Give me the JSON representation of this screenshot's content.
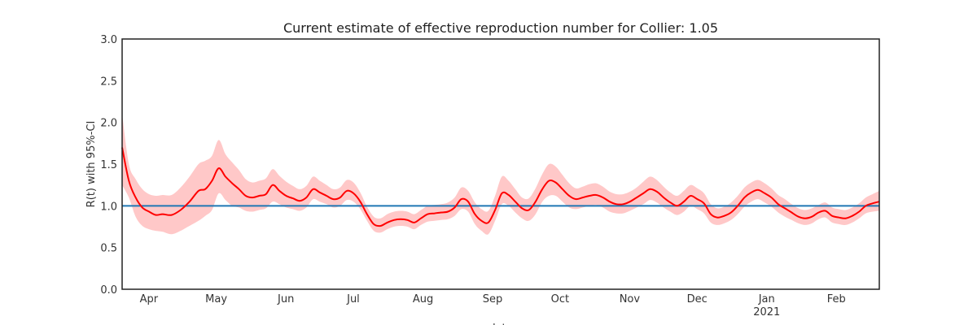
{
  "chart_data": {
    "type": "line",
    "title": "Current estimate of effective reproduction number for Collier: 1.05",
    "ylabel": "R(t) with 95%-CI",
    "xlabel": "date",
    "ylim": [
      0,
      3.0
    ],
    "yticks": [
      "0.0",
      "0.5",
      "1.0",
      "1.5",
      "2.0",
      "2.5",
      "3.0"
    ],
    "xlim": [
      "2020-03-23",
      "2021-02-23"
    ],
    "xticks": [
      {
        "date": "2020-04-01",
        "label": "Apr",
        "sublabel": ""
      },
      {
        "date": "2020-05-01",
        "label": "May",
        "sublabel": ""
      },
      {
        "date": "2020-06-01",
        "label": "Jun",
        "sublabel": ""
      },
      {
        "date": "2020-07-01",
        "label": "Jul",
        "sublabel": ""
      },
      {
        "date": "2020-08-01",
        "label": "Aug",
        "sublabel": ""
      },
      {
        "date": "2020-09-01",
        "label": "Sep",
        "sublabel": ""
      },
      {
        "date": "2020-10-01",
        "label": "Oct",
        "sublabel": ""
      },
      {
        "date": "2020-11-01",
        "label": "Nov",
        "sublabel": ""
      },
      {
        "date": "2020-12-01",
        "label": "Dec",
        "sublabel": ""
      },
      {
        "date": "2021-01-01",
        "label": "Jan",
        "sublabel": "2021"
      },
      {
        "date": "2021-02-01",
        "label": "Feb",
        "sublabel": ""
      }
    ],
    "reference_line": 1.0,
    "grid": false,
    "colors": {
      "line": "#ff0000",
      "band": "#ffc8c8",
      "reference": "#1f77b4",
      "frame": "#222222"
    },
    "series": [
      {
        "x": [
          "2020-03-23",
          "2020-03-26",
          "2020-03-29",
          "2020-04-01",
          "2020-04-04",
          "2020-04-07",
          "2020-04-10",
          "2020-04-14",
          "2020-04-18",
          "2020-04-22",
          "2020-04-26",
          "2020-04-29",
          "2020-05-02",
          "2020-05-05",
          "2020-05-08",
          "2020-05-11",
          "2020-05-14",
          "2020-05-17",
          "2020-05-20",
          "2020-05-23",
          "2020-05-26",
          "2020-05-29",
          "2020-06-01",
          "2020-06-04",
          "2020-06-07",
          "2020-06-10",
          "2020-06-13",
          "2020-06-16",
          "2020-06-19",
          "2020-06-22",
          "2020-06-25",
          "2020-06-28",
          "2020-07-01",
          "2020-07-04",
          "2020-07-07",
          "2020-07-10",
          "2020-07-13",
          "2020-07-16",
          "2020-07-19",
          "2020-07-22",
          "2020-07-25",
          "2020-07-28",
          "2020-07-31",
          "2020-08-03",
          "2020-08-06",
          "2020-08-09",
          "2020-08-12",
          "2020-08-15",
          "2020-08-18",
          "2020-08-21",
          "2020-08-24",
          "2020-08-27",
          "2020-08-30",
          "2020-09-02",
          "2020-09-05",
          "2020-09-08",
          "2020-09-11",
          "2020-09-14",
          "2020-09-17",
          "2020-09-20",
          "2020-09-23",
          "2020-09-26",
          "2020-09-29",
          "2020-10-02",
          "2020-10-05",
          "2020-10-08",
          "2020-10-11",
          "2020-10-14",
          "2020-10-17",
          "2020-10-20",
          "2020-10-23",
          "2020-10-26",
          "2020-10-29",
          "2020-11-01",
          "2020-11-04",
          "2020-11-07",
          "2020-11-10",
          "2020-11-13",
          "2020-11-16",
          "2020-11-19",
          "2020-11-22",
          "2020-11-25",
          "2020-11-28",
          "2020-12-01",
          "2020-12-04",
          "2020-12-07",
          "2020-12-10",
          "2020-12-13",
          "2020-12-16",
          "2020-12-19",
          "2020-12-22",
          "2020-12-25",
          "2020-12-28",
          "2020-12-31",
          "2021-01-03",
          "2021-01-06",
          "2021-01-09",
          "2021-01-12",
          "2021-01-15",
          "2021-01-18",
          "2021-01-21",
          "2021-01-24",
          "2021-01-27",
          "2021-01-30",
          "2021-02-02",
          "2021-02-05",
          "2021-02-08",
          "2021-02-11",
          "2021-02-14",
          "2021-02-17",
          "2021-02-20",
          "2021-02-23"
        ],
        "values": [
          1.7,
          1.3,
          1.1,
          0.98,
          0.93,
          0.89,
          0.9,
          0.89,
          0.95,
          1.05,
          1.18,
          1.2,
          1.3,
          1.45,
          1.35,
          1.27,
          1.2,
          1.12,
          1.1,
          1.12,
          1.14,
          1.25,
          1.18,
          1.12,
          1.09,
          1.06,
          1.1,
          1.2,
          1.16,
          1.12,
          1.08,
          1.1,
          1.18,
          1.15,
          1.05,
          0.9,
          0.78,
          0.76,
          0.8,
          0.83,
          0.84,
          0.83,
          0.8,
          0.85,
          0.9,
          0.91,
          0.92,
          0.93,
          0.98,
          1.08,
          1.05,
          0.9,
          0.82,
          0.8,
          0.95,
          1.15,
          1.13,
          1.05,
          0.97,
          0.95,
          1.05,
          1.2,
          1.3,
          1.28,
          1.2,
          1.12,
          1.08,
          1.1,
          1.12,
          1.13,
          1.1,
          1.05,
          1.02,
          1.02,
          1.05,
          1.1,
          1.15,
          1.2,
          1.17,
          1.1,
          1.04,
          1.0,
          1.05,
          1.12,
          1.08,
          1.03,
          0.9,
          0.86,
          0.88,
          0.92,
          1.0,
          1.1,
          1.16,
          1.19,
          1.15,
          1.1,
          1.02,
          0.97,
          0.92,
          0.87,
          0.85,
          0.87,
          0.92,
          0.94,
          0.88,
          0.86,
          0.85,
          0.88,
          0.93,
          1.0,
          1.03,
          1.05
        ],
        "lower": [
          1.25,
          1.1,
          0.87,
          0.76,
          0.72,
          0.7,
          0.69,
          0.66,
          0.7,
          0.76,
          0.82,
          0.88,
          0.95,
          1.15,
          1.07,
          1.0,
          0.98,
          0.94,
          0.93,
          0.95,
          0.97,
          1.05,
          1.02,
          0.98,
          0.96,
          0.94,
          0.98,
          1.08,
          1.05,
          1.02,
          0.98,
          1.0,
          1.07,
          1.05,
          0.96,
          0.82,
          0.7,
          0.68,
          0.72,
          0.75,
          0.76,
          0.75,
          0.72,
          0.77,
          0.81,
          0.82,
          0.83,
          0.84,
          0.88,
          0.96,
          0.93,
          0.78,
          0.7,
          0.66,
          0.82,
          1.02,
          1.0,
          0.92,
          0.85,
          0.82,
          0.9,
          1.05,
          1.12,
          1.12,
          1.05,
          0.98,
          0.96,
          0.98,
          1.0,
          1.01,
          0.98,
          0.93,
          0.91,
          0.91,
          0.94,
          0.98,
          1.02,
          1.07,
          1.04,
          0.98,
          0.93,
          0.89,
          0.93,
          1.0,
          0.96,
          0.91,
          0.8,
          0.77,
          0.79,
          0.83,
          0.9,
          0.99,
          1.05,
          1.08,
          1.04,
          0.99,
          0.92,
          0.87,
          0.83,
          0.79,
          0.77,
          0.79,
          0.84,
          0.86,
          0.8,
          0.78,
          0.77,
          0.8,
          0.85,
          0.91,
          0.93,
          0.94
        ],
        "upper": [
          2.1,
          1.5,
          1.32,
          1.2,
          1.14,
          1.12,
          1.13,
          1.13,
          1.22,
          1.35,
          1.5,
          1.54,
          1.6,
          1.79,
          1.62,
          1.52,
          1.43,
          1.32,
          1.28,
          1.3,
          1.33,
          1.44,
          1.36,
          1.29,
          1.24,
          1.2,
          1.24,
          1.35,
          1.3,
          1.25,
          1.2,
          1.22,
          1.31,
          1.28,
          1.16,
          0.99,
          0.87,
          0.85,
          0.9,
          0.93,
          0.94,
          0.93,
          0.9,
          0.95,
          1.0,
          1.01,
          1.02,
          1.04,
          1.1,
          1.22,
          1.18,
          1.04,
          0.96,
          0.94,
          1.12,
          1.35,
          1.3,
          1.2,
          1.1,
          1.09,
          1.21,
          1.38,
          1.5,
          1.47,
          1.37,
          1.27,
          1.21,
          1.23,
          1.26,
          1.27,
          1.23,
          1.17,
          1.14,
          1.14,
          1.17,
          1.22,
          1.29,
          1.35,
          1.31,
          1.23,
          1.16,
          1.12,
          1.18,
          1.25,
          1.21,
          1.15,
          1.02,
          0.97,
          0.99,
          1.04,
          1.12,
          1.22,
          1.28,
          1.31,
          1.27,
          1.21,
          1.13,
          1.08,
          1.02,
          0.97,
          0.95,
          0.97,
          1.01,
          1.04,
          0.98,
          0.96,
          0.95,
          0.98,
          1.03,
          1.1,
          1.14,
          1.18
        ]
      }
    ]
  }
}
